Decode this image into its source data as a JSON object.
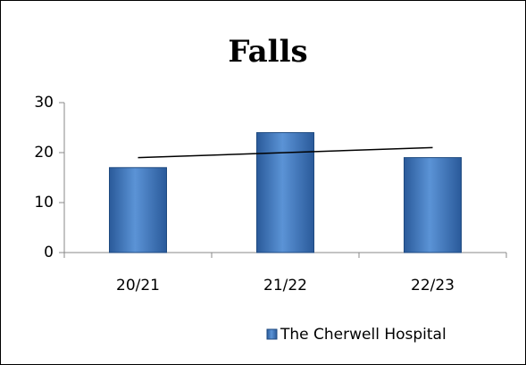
{
  "chart_data": {
    "type": "bar",
    "title": "Falls",
    "categories": [
      "20/21",
      "21/22",
      "22/23"
    ],
    "series": [
      {
        "name": "The Cherwell Hospital",
        "color": "#4f81bd",
        "values": [
          17,
          24,
          19
        ]
      }
    ],
    "ylim": [
      0,
      30
    ],
    "yticks": [
      0,
      10,
      20,
      30
    ],
    "trendline": true,
    "legend": "bottom"
  }
}
